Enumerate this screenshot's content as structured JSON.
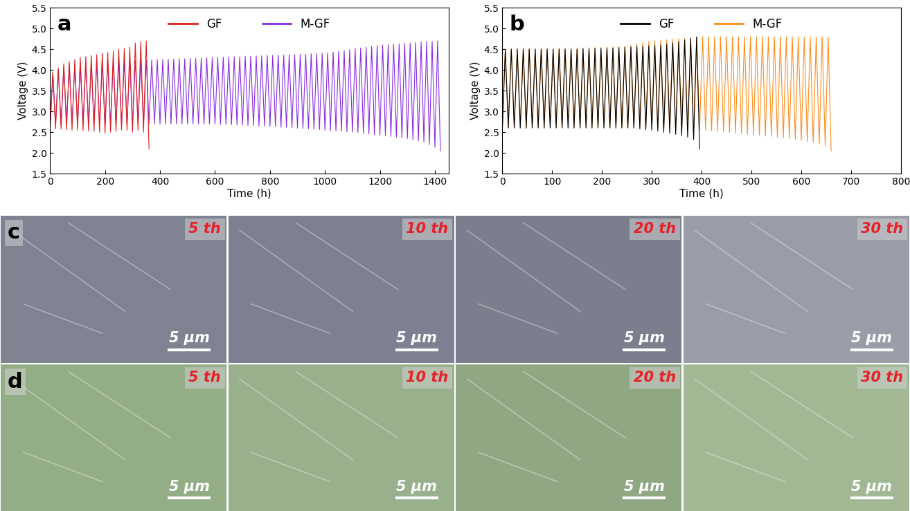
{
  "chart_data": [
    {
      "type": "line",
      "title": "a",
      "x_label": "Time (h)",
      "y_label": "Voltage (V)",
      "xlim": [
        0,
        1450
      ],
      "xticks": [
        0,
        200,
        400,
        600,
        800,
        1000,
        1200,
        1400
      ],
      "ylim": [
        1.5,
        5.5
      ],
      "yticks": [
        1.5,
        {
          "value": 2,
          "label": "2.0"
        },
        2.5,
        {
          "value": 3,
          "label": "3.0"
        },
        3.5,
        {
          "value": 4,
          "label": "4.0"
        },
        4.5,
        {
          "value": 5,
          "label": "5.0"
        },
        5.5
      ],
      "legend": "upper center",
      "series": [
        {
          "name": "M-GF",
          "color": "#8a2be2",
          "x": [
            0,
            10,
            20,
            30,
            40,
            50,
            60,
            70,
            80,
            90,
            100,
            110,
            120,
            130,
            140,
            150,
            160,
            170,
            180,
            190,
            200,
            210,
            220,
            230,
            240,
            250,
            260,
            270,
            280,
            290,
            300,
            310,
            320,
            330,
            340,
            350,
            360,
            370,
            380,
            390,
            400,
            410,
            420,
            430,
            440,
            450,
            460,
            470,
            480,
            490,
            500,
            510,
            520,
            530,
            540,
            550,
            560,
            570,
            580,
            590,
            600,
            610,
            620,
            630,
            640,
            650,
            660,
            670,
            680,
            690,
            700,
            710,
            720,
            730,
            740,
            750,
            760,
            770,
            780,
            790,
            800,
            810,
            820,
            830,
            840,
            850,
            860,
            870,
            880,
            890,
            900,
            910,
            920,
            930,
            940,
            950,
            960,
            970,
            980,
            990,
            1000,
            1010,
            1020,
            1030,
            1040,
            1050,
            1060,
            1070,
            1080,
            1090,
            1100,
            1110,
            1120,
            1130,
            1140,
            1150,
            1160,
            1170,
            1180,
            1190,
            1200,
            1210,
            1220,
            1230,
            1240,
            1250,
            1260,
            1270,
            1280,
            1290,
            1300,
            1310,
            1320,
            1330,
            1340,
            1350,
            1360,
            1370,
            1380,
            1390,
            1400,
            1410,
            1420
          ],
          "values": [
            2.6,
            3.9,
            2.7,
            4.0,
            2.7,
            4.1,
            2.7,
            4.12,
            2.7,
            4.13,
            2.7,
            4.15,
            2.7,
            4.16,
            2.7,
            4.17,
            2.7,
            4.18,
            2.7,
            4.2,
            2.7,
            4.2,
            2.7,
            4.21,
            2.7,
            4.21,
            2.7,
            4.22,
            2.7,
            4.22,
            2.7,
            4.23,
            2.7,
            4.23,
            2.7,
            4.24,
            2.7,
            4.24,
            2.7,
            4.25,
            2.7,
            4.25,
            2.7,
            4.26,
            2.7,
            4.26,
            2.7,
            4.27,
            2.7,
            4.27,
            2.7,
            4.28,
            2.7,
            4.28,
            2.7,
            4.29,
            2.7,
            4.29,
            2.7,
            4.3,
            2.7,
            4.3,
            2.69,
            4.31,
            2.69,
            4.31,
            2.68,
            4.32,
            2.68,
            4.32,
            2.67,
            4.33,
            2.66,
            4.33,
            2.66,
            4.34,
            2.65,
            4.34,
            2.65,
            4.35,
            2.64,
            4.35,
            2.63,
            4.36,
            2.62,
            4.36,
            2.62,
            4.37,
            2.61,
            4.37,
            2.6,
            4.38,
            2.59,
            4.38,
            2.58,
            4.39,
            2.57,
            4.39,
            2.56,
            4.4,
            2.55,
            4.41,
            2.54,
            4.43,
            2.53,
            4.45,
            2.52,
            4.47,
            2.51,
            4.49,
            2.5,
            4.51,
            2.49,
            4.53,
            2.47,
            4.55,
            2.46,
            4.57,
            2.44,
            4.59,
            2.43,
            4.6,
            2.41,
            4.61,
            2.4,
            4.62,
            2.38,
            4.63,
            2.37,
            4.64,
            2.35,
            4.65,
            2.32,
            4.66,
            2.29,
            4.67,
            2.26,
            4.68,
            2.2,
            4.69,
            2.14,
            4.7,
            2.05
          ]
        },
        {
          "name": "GF",
          "color": "#e0201b",
          "x": [
            0,
            10,
            20,
            30,
            40,
            50,
            60,
            70,
            80,
            90,
            100,
            110,
            120,
            130,
            140,
            150,
            160,
            170,
            180,
            190,
            200,
            210,
            220,
            230,
            240,
            250,
            260,
            270,
            280,
            290,
            300,
            310,
            320,
            330,
            340,
            350,
            360
          ],
          "values": [
            2.6,
            3.95,
            2.58,
            4.05,
            2.57,
            4.15,
            2.56,
            4.2,
            2.55,
            4.25,
            2.55,
            4.3,
            2.54,
            4.32,
            2.53,
            4.35,
            2.52,
            4.37,
            2.5,
            4.4,
            2.48,
            4.42,
            2.5,
            4.45,
            2.52,
            4.5,
            2.55,
            4.52,
            2.55,
            4.55,
            2.5,
            4.65,
            2.55,
            4.68,
            2.5,
            4.7,
            2.1
          ]
        }
      ],
      "legend_order": [
        "GF",
        "M-GF"
      ]
    },
    {
      "type": "line",
      "title": "b",
      "x_label": "Time (h)",
      "y_label": "Voltage (V)",
      "xlim": [
        0,
        800
      ],
      "xticks": [
        0,
        100,
        200,
        300,
        400,
        500,
        600,
        700,
        800
      ],
      "ylim": [
        1.5,
        5.5
      ],
      "yticks": [
        1.5,
        {
          "value": 2,
          "label": "2.0"
        },
        2.5,
        {
          "value": 3,
          "label": "3.0"
        },
        3.5,
        {
          "value": 4,
          "label": "4.0"
        },
        4.5,
        {
          "value": 5,
          "label": "5.0"
        },
        5.5
      ],
      "legend": "upper center",
      "series": [
        {
          "name": "M-GF",
          "color": "#ff8c1a",
          "x": [
            0,
            6,
            12,
            18,
            24,
            30,
            36,
            42,
            48,
            54,
            60,
            66,
            72,
            78,
            84,
            90,
            96,
            102,
            108,
            114,
            120,
            126,
            132,
            138,
            144,
            150,
            156,
            162,
            168,
            174,
            180,
            186,
            192,
            198,
            204,
            210,
            216,
            222,
            228,
            234,
            240,
            246,
            252,
            258,
            264,
            270,
            276,
            282,
            288,
            294,
            300,
            306,
            312,
            318,
            324,
            330,
            336,
            342,
            348,
            354,
            360,
            366,
            372,
            378,
            384,
            390,
            396,
            402,
            408,
            414,
            420,
            426,
            432,
            438,
            444,
            450,
            456,
            462,
            468,
            474,
            480,
            486,
            492,
            498,
            504,
            510,
            516,
            522,
            528,
            534,
            540,
            546,
            552,
            558,
            564,
            570,
            576,
            582,
            588,
            594,
            600,
            606,
            612,
            618,
            624,
            630,
            636,
            642,
            648,
            654,
            660
          ],
          "values": [
            2.55,
            4.5,
            2.62,
            4.52,
            2.62,
            4.52,
            2.62,
            4.52,
            2.62,
            4.52,
            2.62,
            4.52,
            2.62,
            4.52,
            2.62,
            4.52,
            2.62,
            4.52,
            2.62,
            4.53,
            2.62,
            4.53,
            2.62,
            4.53,
            2.62,
            4.53,
            2.62,
            4.53,
            2.62,
            4.54,
            2.62,
            4.54,
            2.62,
            4.54,
            2.62,
            4.55,
            2.62,
            4.55,
            2.62,
            4.56,
            2.62,
            4.57,
            2.62,
            4.6,
            2.62,
            4.63,
            2.62,
            4.66,
            2.62,
            4.69,
            2.62,
            4.71,
            2.61,
            4.72,
            2.6,
            4.73,
            2.6,
            4.74,
            2.59,
            4.75,
            2.58,
            4.76,
            2.57,
            4.77,
            2.56,
            4.78,
            2.56,
            4.8,
            2.55,
            4.8,
            2.53,
            4.8,
            2.52,
            4.8,
            2.51,
            4.8,
            2.5,
            4.8,
            2.48,
            4.8,
            2.47,
            4.8,
            2.45,
            4.8,
            2.44,
            4.8,
            2.43,
            4.8,
            2.41,
            4.8,
            2.4,
            4.8,
            2.38,
            4.8,
            2.36,
            4.8,
            2.35,
            4.8,
            2.33,
            4.8,
            2.3,
            4.8,
            2.28,
            4.8,
            2.25,
            4.8,
            2.22,
            4.8,
            2.17,
            4.8,
            2.05
          ]
        },
        {
          "name": "GF",
          "color": "#000000",
          "x": [
            0,
            6,
            12,
            18,
            24,
            30,
            36,
            42,
            48,
            54,
            60,
            66,
            72,
            78,
            84,
            90,
            96,
            102,
            108,
            114,
            120,
            126,
            132,
            138,
            144,
            150,
            156,
            162,
            168,
            174,
            180,
            186,
            192,
            198,
            204,
            210,
            216,
            222,
            228,
            234,
            240,
            246,
            252,
            258,
            264,
            270,
            276,
            282,
            288,
            294,
            300,
            306,
            312,
            318,
            324,
            330,
            336,
            342,
            348,
            354,
            360,
            366,
            372,
            378,
            384,
            390,
            396
          ],
          "values": [
            2.55,
            4.5,
            2.6,
            4.5,
            2.6,
            4.5,
            2.6,
            4.5,
            2.6,
            4.5,
            2.6,
            4.5,
            2.6,
            4.5,
            2.6,
            4.5,
            2.6,
            4.5,
            2.6,
            4.5,
            2.6,
            4.5,
            2.6,
            4.5,
            2.6,
            4.5,
            2.6,
            4.51,
            2.6,
            4.51,
            2.6,
            4.52,
            2.6,
            4.52,
            2.6,
            4.53,
            2.6,
            4.53,
            2.6,
            4.54,
            2.6,
            4.55,
            2.6,
            4.55,
            2.6,
            4.56,
            2.58,
            4.57,
            2.56,
            4.58,
            2.55,
            4.59,
            2.53,
            4.6,
            2.5,
            4.62,
            2.48,
            4.65,
            2.45,
            4.68,
            2.42,
            4.72,
            2.38,
            4.76,
            2.32,
            4.8,
            2.1
          ]
        }
      ],
      "legend_order": [
        "GF",
        "M-GF"
      ]
    }
  ],
  "images": [
    {
      "panel": "c",
      "tiles": [
        {
          "label": "5 th",
          "scale_bar": "5 μm",
          "color": "#7f8291"
        },
        {
          "label": "10 th",
          "scale_bar": "5 μm",
          "color": "#7d8090"
        },
        {
          "label": "20 th",
          "scale_bar": "5 μm",
          "color": "#7b7e8c"
        },
        {
          "label": "30 th",
          "scale_bar": "5 μm",
          "color": "#9a9ca8"
        }
      ]
    },
    {
      "panel": "d",
      "tiles": [
        {
          "label": "5 th",
          "scale_bar": "5 μm",
          "color": "#93ad86"
        },
        {
          "label": "10 th",
          "scale_bar": "5 μm",
          "color": "#98b08b"
        },
        {
          "label": "20 th",
          "scale_bar": "5 μm",
          "color": "#8fa883"
        },
        {
          "label": "30 th",
          "scale_bar": "5 μm",
          "color": "#a2b894"
        }
      ]
    }
  ]
}
